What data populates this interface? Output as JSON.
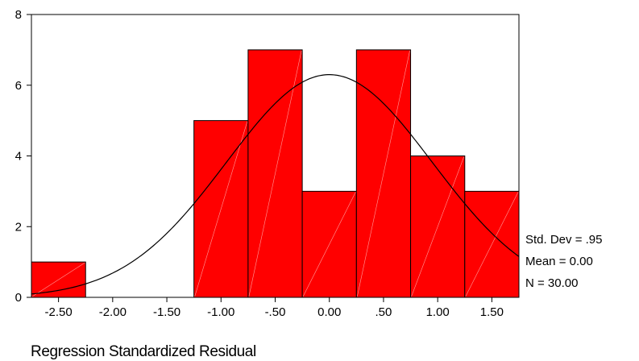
{
  "chart_data": {
    "type": "bar",
    "subtype": "histogram",
    "xlabel": "Regression Standardized Residual",
    "bins": [
      {
        "from": -2.75,
        "to": -2.25,
        "count": 1
      },
      {
        "from": -2.25,
        "to": -1.75,
        "count": 0
      },
      {
        "from": -1.75,
        "to": -1.25,
        "count": 0
      },
      {
        "from": -1.25,
        "to": -0.75,
        "count": 5
      },
      {
        "from": -0.75,
        "to": -0.25,
        "count": 7
      },
      {
        "from": -0.25,
        "to": 0.25,
        "count": 3
      },
      {
        "from": 0.25,
        "to": 0.75,
        "count": 7
      },
      {
        "from": 0.75,
        "to": 1.25,
        "count": 4
      },
      {
        "from": 1.25,
        "to": 1.75,
        "count": 3
      }
    ],
    "x_ticks": [
      -2.5,
      -2.0,
      -1.5,
      -1.0,
      -0.5,
      0.0,
      0.5,
      1.0,
      1.5
    ],
    "x_tick_labels": [
      "-2.50",
      "-2.00",
      "-1.50",
      "-1.00",
      "-.50",
      "0.00",
      ".50",
      "1.00",
      "1.50"
    ],
    "y_ticks": [
      0,
      2,
      4,
      6,
      8
    ],
    "y_tick_labels": [
      "0",
      "2",
      "4",
      "6",
      "8"
    ],
    "xlim": [
      -2.75,
      1.75
    ],
    "ylim": [
      0,
      8
    ],
    "normal_curve": {
      "mean": 0.0,
      "std_dev": 0.95,
      "n": 30,
      "bin_width": 0.5
    },
    "stats": [
      {
        "key": "std_dev",
        "text": "Std. Dev = .95"
      },
      {
        "key": "mean",
        "text": "Mean = 0.00"
      },
      {
        "key": "n",
        "text": "N = 30.00"
      }
    ],
    "grid": false,
    "colors": {
      "bar_fill": "#ff0000",
      "bar_stroke": "#000000",
      "curve": "#000000",
      "hatch": "#ff9a9a"
    }
  }
}
